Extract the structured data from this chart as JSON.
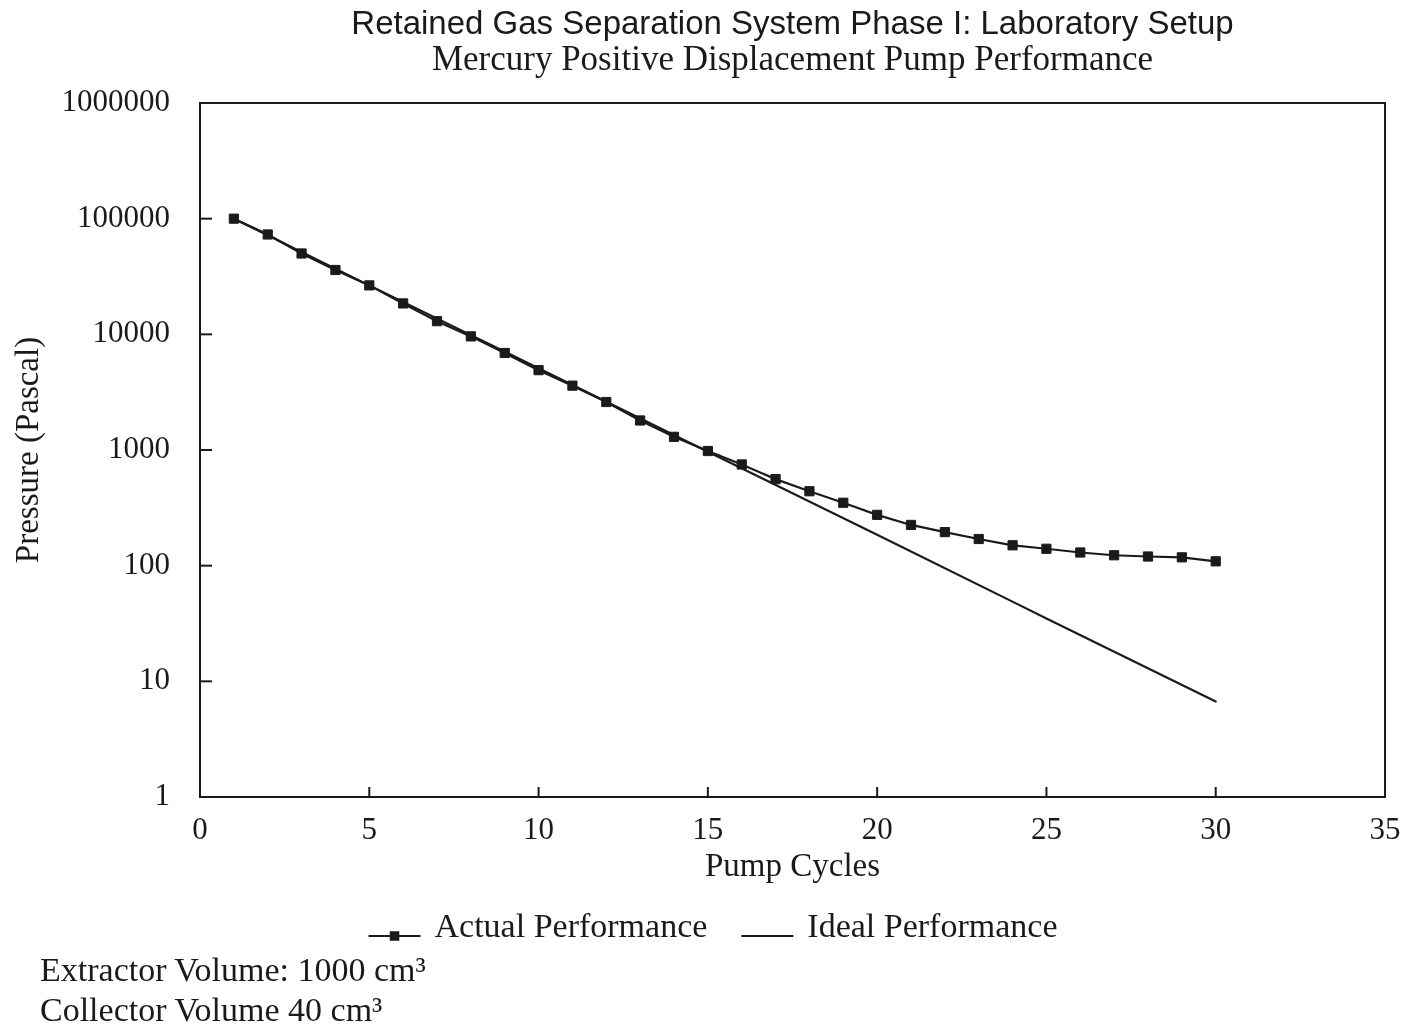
{
  "chart_data": {
    "type": "line",
    "title": "Retained Gas Separation System Phase I: Laboratory Setup",
    "subtitle": "Mercury Positive Displacement Pump Performance",
    "xlabel": "Pump Cycles",
    "ylabel": "Pressure (Pascal)",
    "annotations": [
      "Extractor Volume: 1000 cm³",
      "Collector Volume 40 cm³"
    ],
    "xlim": [
      0,
      35
    ],
    "xticks": [
      0,
      5,
      10,
      15,
      20,
      25,
      30,
      35
    ],
    "ylim": [
      1,
      1000000
    ],
    "yticks": [
      1,
      10,
      100,
      1000,
      10000,
      100000,
      1000000
    ],
    "log": true,
    "legend": "bottom",
    "series": [
      {
        "name": "Actual Performance",
        "color": "#1a1a1a",
        "marker": "square",
        "x": [
          1,
          2,
          3,
          4,
          5,
          6,
          7,
          8,
          9,
          10,
          11,
          12,
          13,
          14,
          15,
          16,
          17,
          18,
          19,
          20,
          21,
          22,
          23,
          24,
          25,
          26,
          27,
          28,
          29,
          30
        ],
        "values": [
          100000,
          73000,
          50000,
          36000,
          26500,
          18500,
          13000,
          9600,
          6900,
          4900,
          3600,
          2600,
          1800,
          1300,
          980,
          750,
          560,
          440,
          350,
          275,
          225,
          195,
          170,
          150,
          140,
          130,
          123,
          120,
          118,
          109
        ]
      },
      {
        "name": "Ideal Performance",
        "color": "#1a1a1a",
        "marker": "none",
        "x": [
          1,
          5,
          10,
          15,
          20,
          25,
          30
        ],
        "values": [
          100000,
          26500,
          5100,
          965,
          185,
          35,
          6.7
        ]
      }
    ]
  }
}
